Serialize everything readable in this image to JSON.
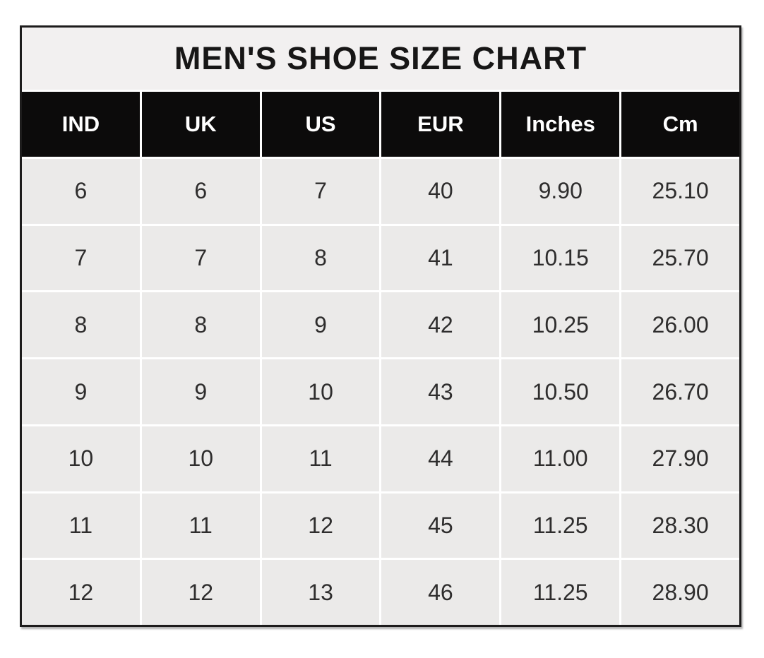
{
  "title": "MEN'S SHOE SIZE CHART",
  "colors": {
    "border": "#1d1c1c",
    "title_bg": "#f2f0f0",
    "header_bg": "#0c0b0b",
    "header_text": "#ffffff",
    "row_bg": "#ebeae9",
    "row_text": "#2e2d2d",
    "divider": "#ffffff"
  },
  "table": {
    "columns": [
      "IND",
      "UK",
      "US",
      "EUR",
      "Inches",
      "Cm"
    ],
    "rows": [
      [
        "6",
        "6",
        "7",
        "40",
        "9.90",
        "25.10"
      ],
      [
        "7",
        "7",
        "8",
        "41",
        "10.15",
        "25.70"
      ],
      [
        "8",
        "8",
        "9",
        "42",
        "10.25",
        "26.00"
      ],
      [
        "9",
        "9",
        "10",
        "43",
        "10.50",
        "26.70"
      ],
      [
        "10",
        "10",
        "11",
        "44",
        "11.00",
        "27.90"
      ],
      [
        "11",
        "11",
        "12",
        "45",
        "11.25",
        "28.30"
      ],
      [
        "12",
        "12",
        "13",
        "46",
        "11.25",
        "28.90"
      ]
    ]
  },
  "chart_data": {
    "type": "table",
    "title": "MEN'S SHOE SIZE CHART",
    "columns": [
      "IND",
      "UK",
      "US",
      "EUR",
      "Inches",
      "Cm"
    ],
    "rows": [
      [
        6,
        6,
        7,
        40,
        9.9,
        25.1
      ],
      [
        7,
        7,
        8,
        41,
        10.15,
        25.7
      ],
      [
        8,
        8,
        9,
        42,
        10.25,
        26.0
      ],
      [
        9,
        9,
        10,
        43,
        10.5,
        26.7
      ],
      [
        10,
        10,
        11,
        44,
        11.0,
        27.9
      ],
      [
        11,
        11,
        12,
        45,
        11.25,
        28.3
      ],
      [
        12,
        12,
        13,
        46,
        11.25,
        28.9
      ]
    ],
    "layout": {
      "header_style": "black-background-white-bold-text",
      "grid": "white 3px dividers between light-gray cells",
      "legend_position": "none"
    }
  }
}
